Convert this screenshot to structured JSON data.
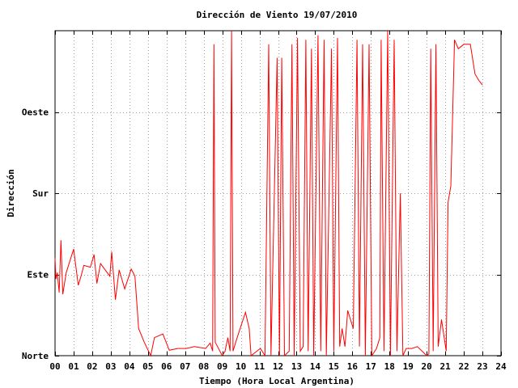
{
  "chart_data": {
    "type": "line",
    "title": "Dirección de Viento 19/07/2010",
    "xlabel": "Tiempo (Hora Local Argentina)",
    "ylabel": "Dirección",
    "xlim": [
      0,
      24
    ],
    "ylim": [
      0,
      360
    ],
    "x_ticks": [
      {
        "value": 0,
        "label": "00"
      },
      {
        "value": 1,
        "label": "01"
      },
      {
        "value": 2,
        "label": "02"
      },
      {
        "value": 3,
        "label": "03"
      },
      {
        "value": 4,
        "label": "04"
      },
      {
        "value": 5,
        "label": "05"
      },
      {
        "value": 6,
        "label": "06"
      },
      {
        "value": 7,
        "label": "07"
      },
      {
        "value": 8,
        "label": "08"
      },
      {
        "value": 9,
        "label": "09"
      },
      {
        "value": 10,
        "label": "10"
      },
      {
        "value": 11,
        "label": "11"
      },
      {
        "value": 12,
        "label": "12"
      },
      {
        "value": 13,
        "label": "13"
      },
      {
        "value": 14,
        "label": "14"
      },
      {
        "value": 15,
        "label": "15"
      },
      {
        "value": 16,
        "label": "16"
      },
      {
        "value": 17,
        "label": "17"
      },
      {
        "value": 18,
        "label": "18"
      },
      {
        "value": 19,
        "label": "19"
      },
      {
        "value": 20,
        "label": "20"
      },
      {
        "value": 21,
        "label": "21"
      },
      {
        "value": 22,
        "label": "22"
      },
      {
        "value": 23,
        "label": "23"
      },
      {
        "value": 24,
        "label": "24"
      }
    ],
    "y_ticks": [
      {
        "value": 0,
        "label": "Norte"
      },
      {
        "value": 90,
        "label": "Este"
      },
      {
        "value": 180,
        "label": "Sur"
      },
      {
        "value": 270,
        "label": "Oeste"
      }
    ],
    "grid": true,
    "line_color": "#ff0000",
    "series": [
      {
        "values": [
          [
            0.0,
            108
          ],
          [
            0.05,
            85
          ],
          [
            0.12,
            92
          ],
          [
            0.22,
            70
          ],
          [
            0.32,
            128
          ],
          [
            0.42,
            68
          ],
          [
            0.6,
            92
          ],
          [
            1.0,
            118
          ],
          [
            1.25,
            78
          ],
          [
            1.4,
            88
          ],
          [
            1.55,
            100
          ],
          [
            1.9,
            98
          ],
          [
            2.1,
            112
          ],
          [
            2.25,
            80
          ],
          [
            2.45,
            102
          ],
          [
            2.95,
            88
          ],
          [
            3.05,
            115
          ],
          [
            3.25,
            62
          ],
          [
            3.45,
            95
          ],
          [
            3.75,
            74
          ],
          [
            4.1,
            96
          ],
          [
            4.3,
            88
          ],
          [
            4.5,
            30
          ],
          [
            4.8,
            15
          ],
          [
            5.15,
            0
          ],
          [
            5.35,
            20
          ],
          [
            5.8,
            24
          ],
          [
            6.15,
            6
          ],
          [
            6.6,
            8
          ],
          [
            7.05,
            8
          ],
          [
            7.5,
            10
          ],
          [
            8.1,
            8
          ],
          [
            8.35,
            14
          ],
          [
            8.48,
            5
          ],
          [
            8.55,
            345
          ],
          [
            8.62,
            15
          ],
          [
            9.0,
            0
          ],
          [
            9.15,
            5
          ],
          [
            9.3,
            20
          ],
          [
            9.42,
            5
          ],
          [
            9.5,
            362
          ],
          [
            9.58,
            5
          ],
          [
            9.8,
            20
          ],
          [
            10.25,
            48
          ],
          [
            10.45,
            30
          ],
          [
            10.55,
            0
          ],
          [
            11.05,
            8
          ],
          [
            11.3,
            0
          ],
          [
            11.5,
            345
          ],
          [
            11.62,
            0
          ],
          [
            11.95,
            330
          ],
          [
            12.08,
            0
          ],
          [
            12.2,
            330
          ],
          [
            12.35,
            0
          ],
          [
            12.6,
            5
          ],
          [
            12.75,
            345
          ],
          [
            12.87,
            0
          ],
          [
            13.05,
            352
          ],
          [
            13.2,
            5
          ],
          [
            13.35,
            10
          ],
          [
            13.5,
            350
          ],
          [
            13.62,
            5
          ],
          [
            13.8,
            340
          ],
          [
            13.92,
            0
          ],
          [
            14.15,
            355
          ],
          [
            14.3,
            5
          ],
          [
            14.48,
            350
          ],
          [
            14.6,
            0
          ],
          [
            14.88,
            340
          ],
          [
            15.0,
            5
          ],
          [
            15.2,
            352
          ],
          [
            15.32,
            10
          ],
          [
            15.45,
            30
          ],
          [
            15.6,
            10
          ],
          [
            15.75,
            50
          ],
          [
            16.05,
            30
          ],
          [
            16.25,
            350
          ],
          [
            16.38,
            10
          ],
          [
            16.55,
            345
          ],
          [
            16.7,
            0
          ],
          [
            16.9,
            345
          ],
          [
            17.05,
            0
          ],
          [
            17.3,
            8
          ],
          [
            17.48,
            20
          ],
          [
            17.55,
            350
          ],
          [
            17.7,
            5
          ],
          [
            17.9,
            360
          ],
          [
            18.05,
            0
          ],
          [
            18.25,
            350
          ],
          [
            18.4,
            5
          ],
          [
            18.58,
            180
          ],
          [
            18.72,
            0
          ],
          [
            18.9,
            8
          ],
          [
            19.2,
            8
          ],
          [
            19.5,
            10
          ],
          [
            19.8,
            4
          ],
          [
            20.0,
            0
          ],
          [
            20.12,
            2
          ],
          [
            20.22,
            340
          ],
          [
            20.35,
            5
          ],
          [
            20.5,
            345
          ],
          [
            20.62,
            10
          ],
          [
            20.8,
            40
          ],
          [
            21.05,
            5
          ],
          [
            21.15,
            170
          ],
          [
            21.3,
            188
          ],
          [
            21.5,
            350
          ],
          [
            21.7,
            340
          ],
          [
            22.0,
            345
          ],
          [
            22.35,
            345
          ],
          [
            22.5,
            325
          ],
          [
            22.6,
            312
          ],
          [
            22.8,
            305
          ],
          [
            23.0,
            300
          ]
        ]
      }
    ]
  }
}
